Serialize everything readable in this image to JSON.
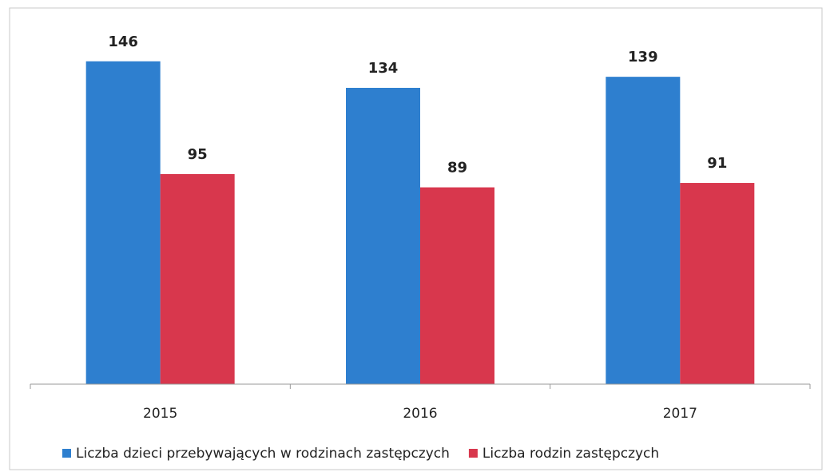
{
  "chart_data": {
    "type": "bar",
    "categories": [
      "2015",
      "2016",
      "2017"
    ],
    "series": [
      {
        "name": "Liczba dzieci przebywających w rodzinach zastępczych",
        "color": "#2e7fcf",
        "values": [
          146,
          134,
          139
        ]
      },
      {
        "name": "Liczba rodzin zastępczych",
        "color": "#d8374d",
        "values": [
          95,
          89,
          91
        ]
      }
    ],
    "ylim": [
      0,
      160
    ],
    "legend": "bottom"
  }
}
